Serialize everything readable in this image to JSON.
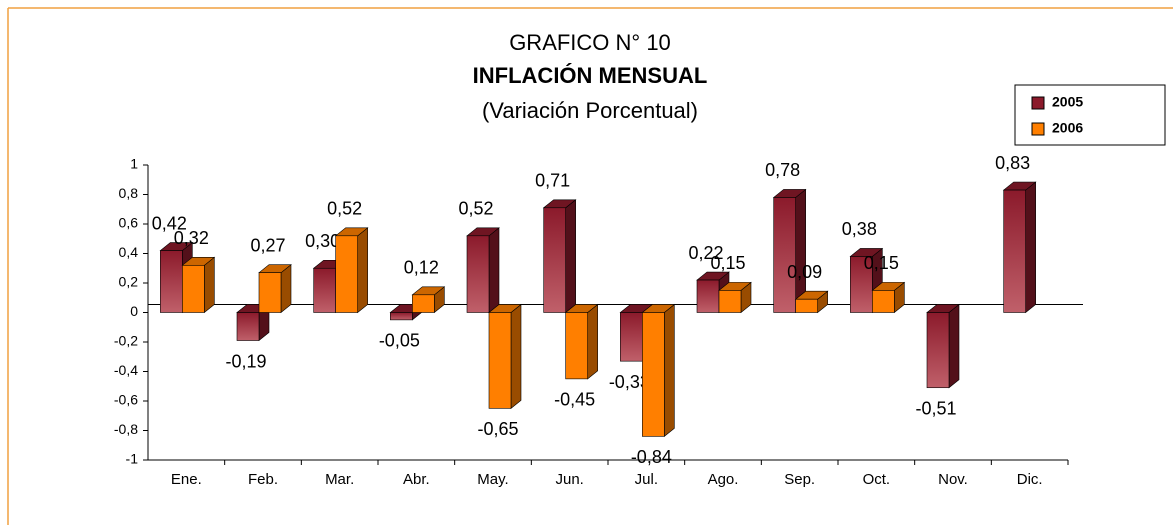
{
  "chart_data": {
    "type": "bar",
    "title": "GRAFICO N° 10",
    "subtitle": "INFLACIÓN MENSUAL",
    "subtitle2": "(Variación Porcentual)",
    "categories": [
      "Ene.",
      "Feb.",
      "Mar.",
      "Abr.",
      "May.",
      "Jun.",
      "Jul.",
      "Ago.",
      "Sep.",
      "Oct.",
      "Nov.",
      "Dic."
    ],
    "series": [
      {
        "name": "2005",
        "color": "#8b1a2b",
        "values": [
          0.42,
          -0.19,
          0.3,
          -0.05,
          0.52,
          0.71,
          -0.33,
          0.22,
          0.78,
          0.38,
          -0.51,
          0.83
        ],
        "value_labels": [
          "0,42",
          "-0,19",
          "0,30",
          "-0,05",
          "0,52",
          "0,71",
          "-0,33",
          "0,22",
          "0,78",
          "0,38",
          "-0,51",
          "0,83"
        ]
      },
      {
        "name": "2006",
        "color": "#ff7f00",
        "values": [
          0.32,
          0.27,
          0.52,
          0.12,
          -0.65,
          -0.45,
          -0.84,
          0.15,
          0.09,
          0.15,
          null,
          null
        ],
        "value_labels": [
          "0,32",
          "0,27",
          "0,52",
          "0,12",
          "-0,65",
          "-0,45",
          "-0,84",
          "0,15",
          "0,09",
          "0,15",
          null,
          null
        ]
      }
    ],
    "ylim": [
      -1,
      1
    ],
    "yticks": [
      -1,
      {
        "value": -0.8,
        "label": "-0,8"
      },
      {
        "value": -0.6,
        "label": "-0,6"
      },
      {
        "value": -0.4,
        "label": "-0,4"
      },
      {
        "value": -0.2,
        "label": "-0,2"
      },
      0,
      {
        "value": 0.2,
        "label": "0,2"
      },
      {
        "value": 0.4,
        "label": "0,4"
      },
      {
        "value": 0.6,
        "label": "0,6"
      },
      {
        "value": 0.8,
        "label": "0,8"
      },
      1
    ],
    "legend": "top-right"
  }
}
